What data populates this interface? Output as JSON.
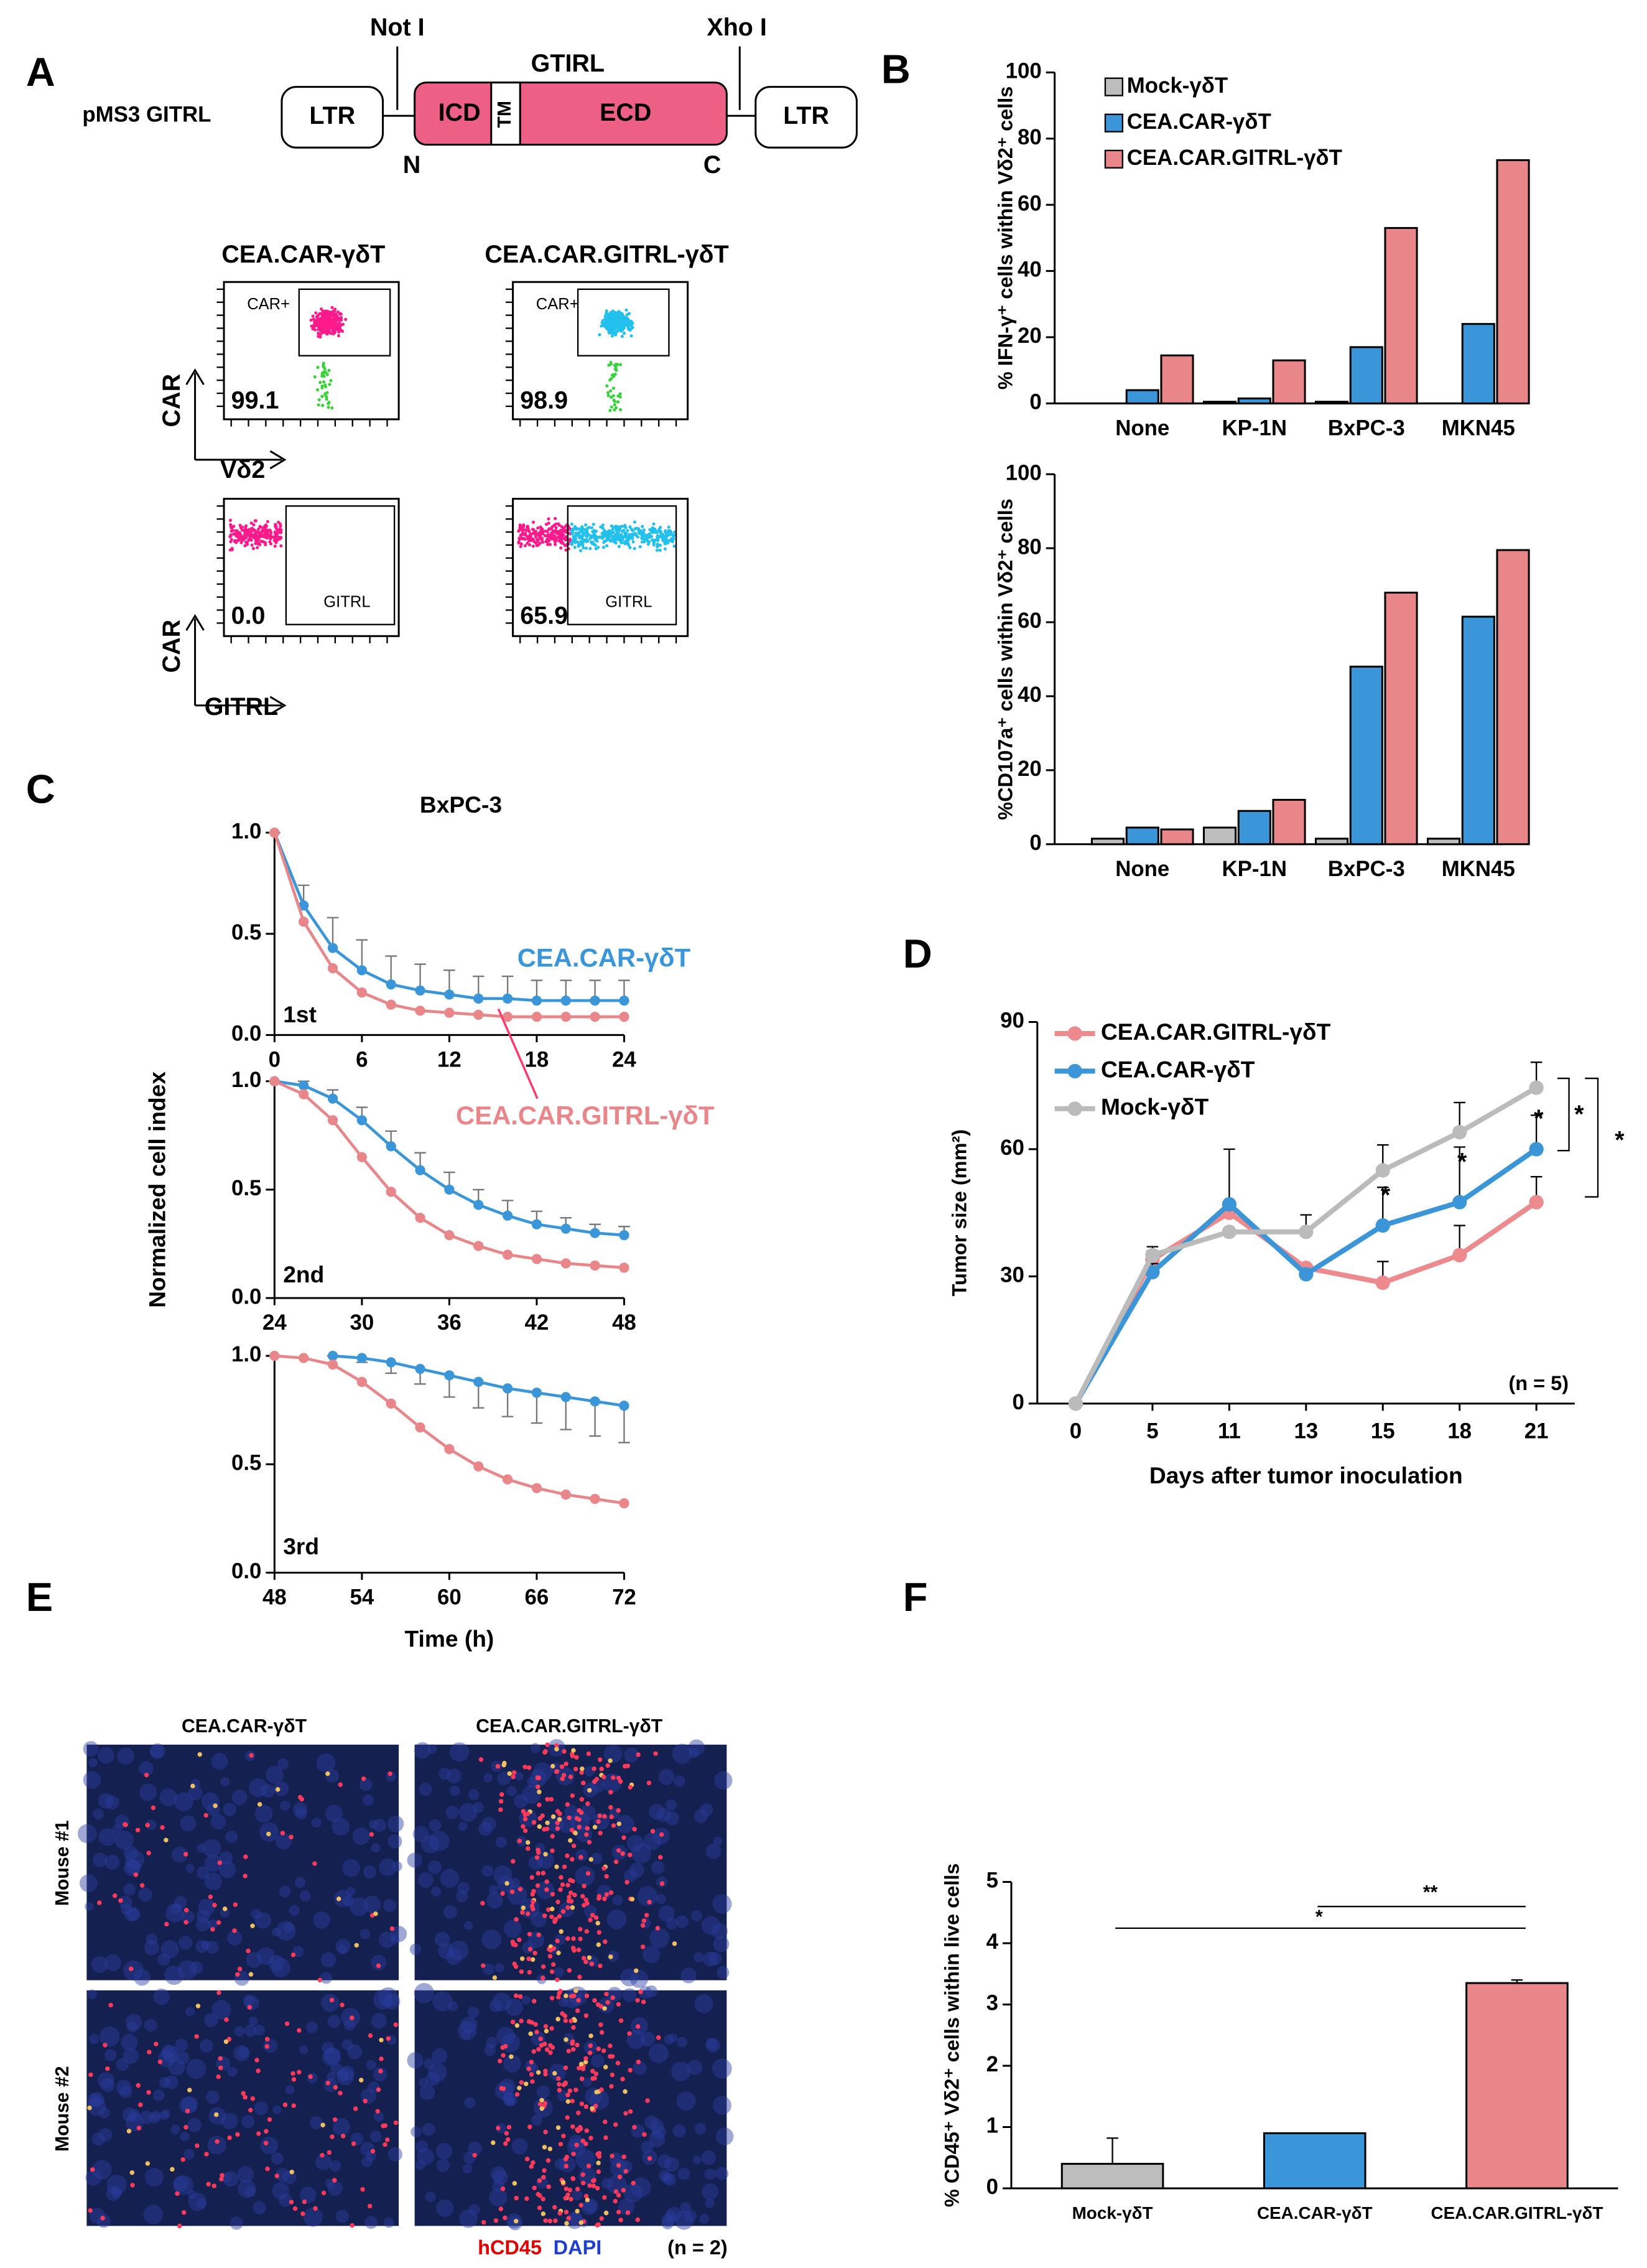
{
  "figure": {
    "panel_labels": [
      "A",
      "B",
      "C",
      "D",
      "E",
      "F"
    ],
    "diagram": {
      "construct": "pMS3 GITRL",
      "ltr_left": "LTR",
      "icd": "ICD",
      "tm": "TM",
      "ecd": "ECD",
      "ltr_right": "LTR",
      "site_left": "Not I",
      "site_right": "Xho I",
      "gene": "GTIRL",
      "n_term": "N",
      "c_term": "C"
    },
    "flow": {
      "col_left": "CEA.CAR-γδT",
      "col_right": "CEA.CAR.GITRL-γδT",
      "gate_top_left": "CAR+",
      "gate_top_right": "CAR+",
      "pct_top_left": "99.1",
      "pct_top_right": "98.9",
      "pct_bottom_left": "0.0",
      "pct_bottom_right": "65.9",
      "gate_bottom_left": "GITRL",
      "gate_bottom_right": "GITRL",
      "axis_y_top": "CAR",
      "axis_x_top": "Vδ2",
      "axis_y_bottom": "CAR",
      "axis_x_bottom": "GITRL"
    },
    "images": {
      "col_left": "CEA.CAR-γδT",
      "col_right": "CEA.CAR.GITRL-γδT",
      "row_top": "Mouse #1",
      "row_bottom": "Mouse #2",
      "stain_red": "hCD45",
      "stain_blue": "DAPI",
      "n": "(n = 2)"
    }
  },
  "chart_data": [
    {
      "type": "bar",
      "y_label": "% IFN-γ⁺ cells within Vδ2⁺ cells",
      "categories": [
        "None",
        "KP-1N",
        "BxPC-3",
        "MKN45"
      ],
      "series": [
        {
          "name": "Mock-γδT",
          "color": "#bdbdbd",
          "values": [
            0,
            0.5,
            0.5,
            0
          ]
        },
        {
          "name": "CEA.CAR-γδT",
          "color": "#3a96d8",
          "values": [
            4,
            1.5,
            17,
            24
          ]
        },
        {
          "name": "CEA.CAR.GITRL-γδT",
          "color": "#e8868a",
          "values": [
            14.5,
            13,
            53,
            73.5
          ]
        }
      ],
      "ylim": [
        0,
        100
      ],
      "yticks": [
        0,
        20,
        40,
        60,
        80,
        100
      ],
      "legend": "upper left"
    },
    {
      "type": "bar",
      "y_label": "%CD107a⁺ cells within Vδ2⁺ cells",
      "categories": [
        "None",
        "KP-1N",
        "BxPC-3",
        "MKN45"
      ],
      "series": [
        {
          "color": "#bdbdbd",
          "values": [
            1.5,
            4.5,
            1.5,
            1.5
          ]
        },
        {
          "color": "#3a96d8",
          "values": [
            4.5,
            9,
            48,
            61.5
          ]
        },
        {
          "color": "#e8868a",
          "values": [
            4,
            12,
            68,
            79.5
          ]
        }
      ],
      "ylim": [
        0,
        100
      ],
      "yticks": [
        0,
        20,
        40,
        60,
        80,
        100
      ]
    },
    {
      "type": "line",
      "title": "BxPC-3",
      "label": "1st",
      "x": [
        0,
        2,
        4,
        6,
        8,
        10,
        12,
        14,
        16,
        18,
        20,
        22,
        24
      ],
      "series": [
        {
          "name": "CEA.CAR-γδT",
          "color": "#3a96d8",
          "values": [
            1.0,
            0.64,
            0.43,
            0.32,
            0.25,
            0.22,
            0.2,
            0.18,
            0.18,
            0.17,
            0.17,
            0.17,
            0.17
          ],
          "errors": [
            0,
            0.1,
            0.15,
            0.15,
            0.14,
            0.13,
            0.12,
            0.11,
            0.11,
            0.1,
            0.1,
            0.1,
            0.1
          ]
        },
        {
          "name": "CEA.CAR.GITRL-γδT",
          "color": "#e8868a",
          "values": [
            1.0,
            0.56,
            0.33,
            0.21,
            0.15,
            0.12,
            0.11,
            0.1,
            0.09,
            0.09,
            0.09,
            0.09,
            0.09
          ]
        }
      ],
      "error_side": "up",
      "xlim": [
        0,
        24
      ],
      "xticks": [
        0,
        6,
        12,
        18,
        24
      ],
      "ylim": [
        0,
        1
      ],
      "yticks": [
        {
          "value": 0,
          "label": "0.0"
        },
        {
          "value": 0.5,
          "label": "0.5"
        },
        {
          "value": 1,
          "label": "1.0"
        }
      ]
    },
    {
      "type": "line",
      "label": "2nd",
      "y_label": "Normalized cell index",
      "x": [
        24,
        26,
        28,
        30,
        32,
        34,
        36,
        38,
        40,
        42,
        44,
        46,
        48
      ],
      "series": [
        {
          "color": "#3a96d8",
          "values": [
            1.0,
            0.98,
            0.92,
            0.82,
            0.7,
            0.59,
            0.5,
            0.43,
            0.38,
            0.34,
            0.32,
            0.3,
            0.29
          ],
          "errors": [
            0,
            0.02,
            0.04,
            0.06,
            0.07,
            0.08,
            0.08,
            0.07,
            0.07,
            0.06,
            0.05,
            0.04,
            0.04
          ]
        },
        {
          "color": "#e8868a",
          "values": [
            1.0,
            0.94,
            0.82,
            0.65,
            0.49,
            0.37,
            0.29,
            0.24,
            0.2,
            0.18,
            0.16,
            0.15,
            0.14
          ]
        }
      ],
      "error_side": "up",
      "xlim": [
        24,
        48
      ],
      "xticks": [
        24,
        30,
        36,
        42,
        48
      ],
      "ylim": [
        0,
        1
      ],
      "yticks": [
        {
          "value": 0,
          "label": "0.0"
        },
        {
          "value": 0.5,
          "label": "0.5"
        },
        {
          "value": 1,
          "label": "1.0"
        }
      ]
    },
    {
      "type": "line",
      "label": "3rd",
      "x_label": "Time (h)",
      "x": [
        48,
        50,
        52,
        54,
        56,
        58,
        60,
        62,
        64,
        66,
        68,
        70,
        72
      ],
      "series": [
        {
          "color": "#3a96d8",
          "values": [
            null,
            null,
            1.0,
            0.99,
            0.97,
            0.94,
            0.91,
            0.88,
            0.85,
            0.83,
            0.81,
            0.79,
            0.77
          ],
          "errors": [
            null,
            null,
            0,
            0.02,
            0.05,
            0.07,
            0.1,
            0.12,
            0.13,
            0.14,
            0.15,
            0.16,
            0.17
          ]
        },
        {
          "color": "#e8868a",
          "values": [
            1.0,
            0.99,
            0.96,
            0.88,
            0.78,
            0.67,
            0.57,
            0.49,
            0.43,
            0.39,
            0.36,
            0.34,
            0.32
          ]
        }
      ],
      "error_side": "down",
      "xlim": [
        48,
        72
      ],
      "xticks": [
        48,
        54,
        60,
        66,
        72
      ],
      "ylim": [
        0,
        1
      ],
      "yticks": [
        {
          "value": 0,
          "label": "0.0"
        },
        {
          "value": 0.5,
          "label": "0.5"
        },
        {
          "value": 1,
          "label": "1.0"
        }
      ]
    },
    {
      "type": "line",
      "y_label": "Tumor size (mm²)",
      "x_label": "Days after tumor inoculation",
      "categories": [
        "0",
        "5",
        "11",
        "13",
        "15",
        "18",
        "21"
      ],
      "series": [
        {
          "name": "CEA.CAR.GITRL-γδT",
          "color": "#ec8a8e",
          "values": [
            0,
            34,
            45,
            32,
            28.5,
            35,
            47.5
          ],
          "errors": [
            0,
            2,
            0,
            0,
            5,
            7,
            6
          ]
        },
        {
          "name": "CEA.CAR-γδT",
          "color": "#3b95d6",
          "values": [
            0,
            31,
            47,
            30.5,
            42,
            47.5,
            60
          ],
          "errors": [
            0,
            2,
            13,
            0,
            9,
            13,
            8
          ]
        },
        {
          "name": "Mock-γδT",
          "color": "#bbbbbb",
          "values": [
            0,
            35,
            40.5,
            40.5,
            55,
            64,
            74.5
          ],
          "errors": [
            0,
            2,
            0,
            4,
            6,
            7,
            6
          ]
        }
      ],
      "error_side": "up",
      "ylim": [
        0,
        90
      ],
      "yticks": [
        0,
        30,
        60,
        90
      ],
      "legend": "upper left",
      "annotations": [
        "*",
        "*",
        "*",
        "*",
        "*",
        "(n = 5)"
      ]
    },
    {
      "type": "bar",
      "y_label": "% CD45⁺ Vδ2⁺ cells within live cells",
      "categories": [
        "Mock-γδT",
        "CEA.CAR-γδT",
        "CEA.CAR.GITRL-γδT"
      ],
      "values": [
        0.4,
        0.9,
        3.35
      ],
      "errors": [
        0.42,
        0,
        0.05
      ],
      "colors": [
        "#bdbdbd",
        "#3a96d8",
        "#e8868a"
      ],
      "ylim": [
        0,
        5
      ],
      "yticks": [
        0,
        1,
        2,
        3,
        4,
        5
      ],
      "annotations": [
        "**",
        "*"
      ]
    }
  ]
}
